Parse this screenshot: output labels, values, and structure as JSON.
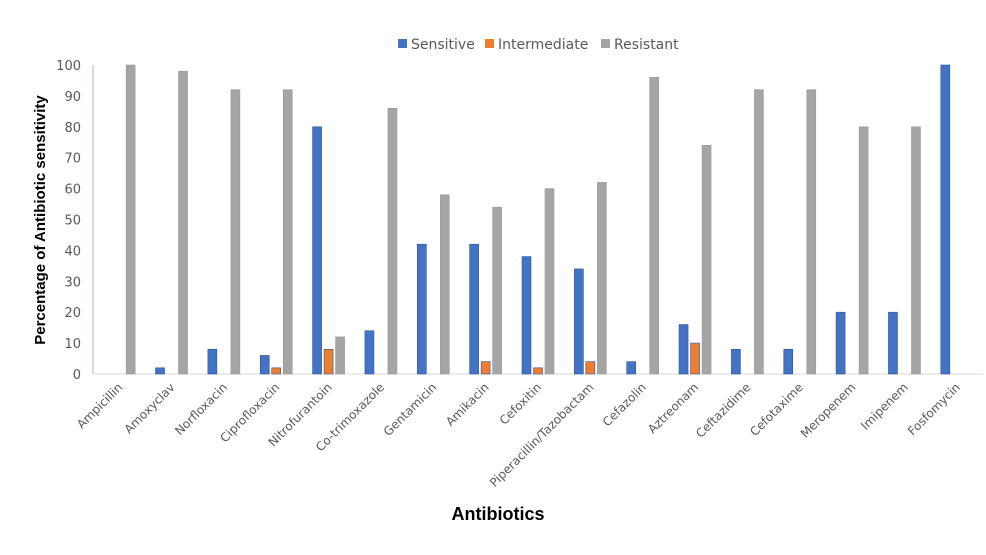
{
  "chart_data": {
    "type": "bar",
    "title": "",
    "xlabel": "Antibiotics",
    "ylabel": "Percentage of Antibiotic sensitivity",
    "ylim": [
      0,
      100
    ],
    "yticks": [
      0,
      10,
      20,
      30,
      40,
      50,
      60,
      70,
      80,
      90,
      100
    ],
    "grid": false,
    "legend": "top",
    "categories": [
      "Ampicillin",
      "Amoxyclav",
      "Norfloxacin",
      "Ciprofloxacin",
      "Nitrofurantoin",
      "Co-trimoxazole",
      "Gentamicin",
      "Amikacin",
      "Cefoxitin",
      "Piperacillin/Tazobactam",
      "Cefazolin",
      "Aztreonam",
      "Ceftazidime",
      "Cefotaxime",
      "Meropenem",
      "Imipenem",
      "Fosfomycin"
    ],
    "series": [
      {
        "name": "Sensitive",
        "color": "#4472c4",
        "values": [
          0,
          2,
          8,
          6,
          80,
          14,
          42,
          42,
          38,
          34,
          4,
          16,
          8,
          8,
          20,
          20,
          100
        ]
      },
      {
        "name": "Intermediate",
        "color": "#ed7d31",
        "values": [
          0,
          0,
          0,
          2,
          8,
          0,
          0,
          4,
          2,
          4,
          0,
          10,
          0,
          0,
          0,
          0,
          0
        ]
      },
      {
        "name": "Resistant",
        "color": "#a5a5a5",
        "values": [
          100,
          98,
          92,
          92,
          12,
          86,
          58,
          54,
          60,
          62,
          96,
          74,
          92,
          92,
          80,
          80,
          0
        ]
      }
    ]
  }
}
